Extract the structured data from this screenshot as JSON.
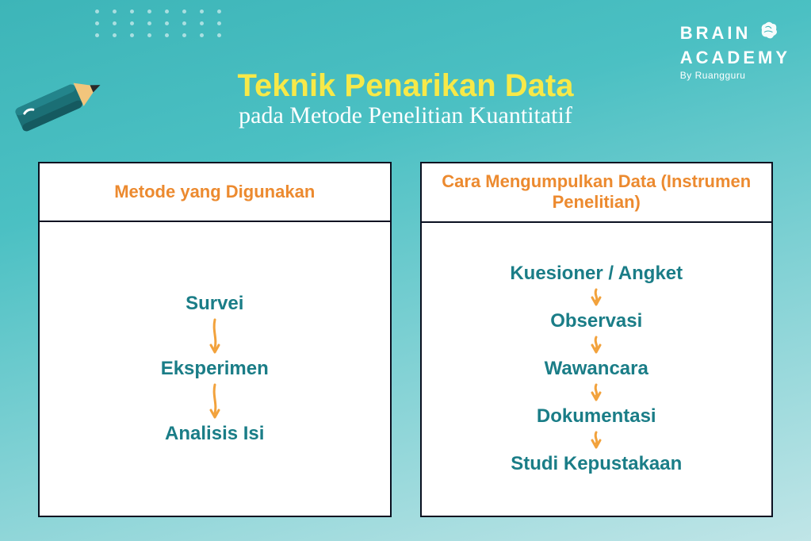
{
  "background": {
    "gradient_from": "#3db5b8",
    "gradient_to": "#c0e5e7",
    "dot_color": "rgba(255,255,255,0.55)"
  },
  "brand": {
    "line1": "BRAIN",
    "line2": "ACADEMY",
    "sub": "By Ruangguru",
    "text_color": "#ffffff",
    "icon_color": "#ffffff"
  },
  "pencil": {
    "body_color": "#1b6f75",
    "tip_wood": "#f2c57c",
    "tip_lead": "#2a2a2a",
    "accent": "#ffffff"
  },
  "title": {
    "main": "Teknik Penarikan Data",
    "main_color": "#f7e948",
    "sub": "pada Metode Penelitian Kuantitatif",
    "sub_color": "#ffffff",
    "main_fontsize": 40,
    "sub_fontsize": 30
  },
  "cards": {
    "border_color": "#0a1020",
    "bg_color": "#ffffff",
    "header_color": "#ec8a2f",
    "item_color": "#1a7d87",
    "arrow_color": "#f2a23c",
    "arrow_height_large": 46,
    "arrow_height_small": 24,
    "left": {
      "header": "Metode yang Digunakan",
      "items": [
        "Survei",
        "Eksperimen",
        "Analisis Isi"
      ]
    },
    "right": {
      "header": "Cara Mengumpulkan Data (Instrumen Penelitian)",
      "items": [
        "Kuesioner / Angket",
        "Observasi",
        "Wawancara",
        "Dokumentasi",
        "Studi Kepustakaan"
      ]
    }
  }
}
